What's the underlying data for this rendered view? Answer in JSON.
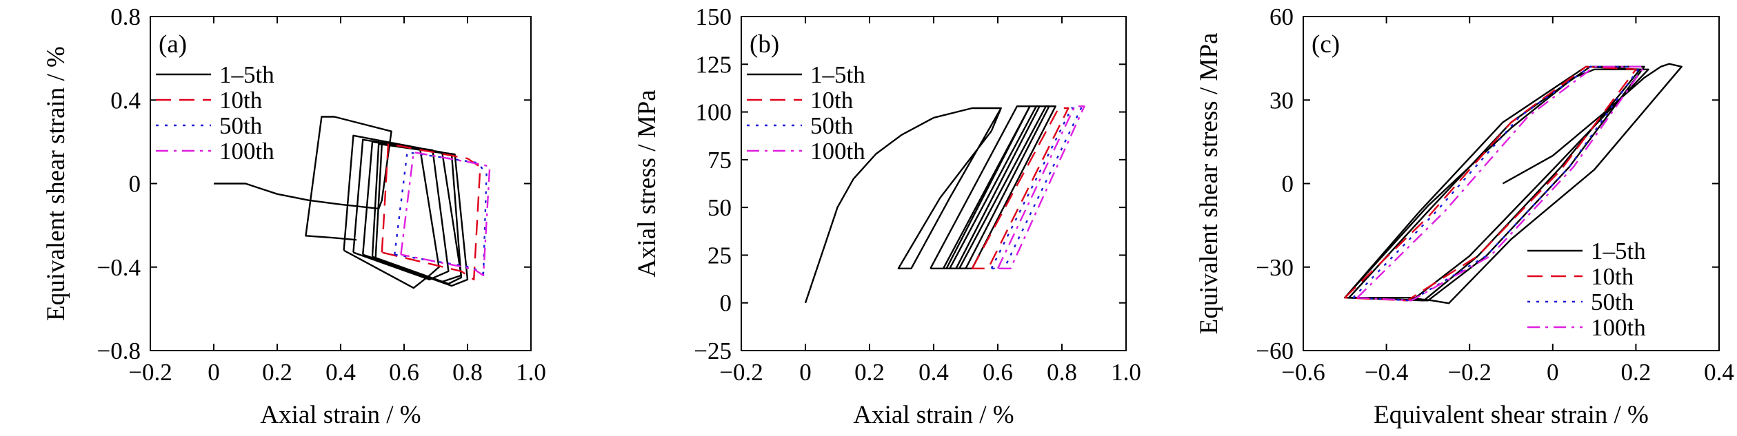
{
  "legend_labels": [
    "1–5th",
    "10th",
    "50th",
    "100th"
  ],
  "colors": {
    "1-5th": "#000000",
    "10th": "#e0001b",
    "50th": "#1a1adb",
    "100th": "#e01ee0"
  },
  "chart_data": [
    {
      "type": "line",
      "panel_label": "(a)",
      "xlabel": "Axial strain / %",
      "ylabel": "Equivalent shear strain / %",
      "xlim": [
        -0.2,
        1.0
      ],
      "ylim": [
        -0.8,
        0.8
      ],
      "xticks": [
        -0.2,
        0.0,
        0.2,
        0.4,
        0.6,
        0.8,
        1.0
      ],
      "xtick_labels": [
        "−0.2",
        "0",
        "0.2",
        "0.4",
        "0.6",
        "0.8",
        "1.0"
      ],
      "yticks": [
        -0.8,
        -0.4,
        0,
        0.4,
        0.8
      ],
      "ytick_labels": [
        "−0.8",
        "−0.4",
        "0",
        "0.4",
        "0.8"
      ],
      "legend_position": "top-left",
      "series": [
        {
          "name": "1–5th",
          "style": "solid",
          "color": "#000000",
          "segments": [
            [
              [
                0,
                0
              ],
              [
                0.1,
                0
              ],
              [
                0.2,
                -0.05
              ],
              [
                0.3,
                -0.08
              ],
              [
                0.4,
                -0.1
              ],
              [
                0.52,
                -0.12
              ],
              [
                0.53,
                -0.08
              ],
              [
                0.56,
                0.25
              ],
              [
                0.38,
                0.32
              ],
              [
                0.34,
                0.32
              ],
              [
                0.29,
                -0.25
              ],
              [
                0.38,
                -0.26
              ],
              [
                0.45,
                -0.27
              ]
            ],
            [
              [
                0.41,
                -0.32
              ],
              [
                0.44,
                0.23
              ],
              [
                0.65,
                0.17
              ],
              [
                0.71,
                -0.4
              ],
              [
                0.68,
                -0.44
              ],
              [
                0.63,
                -0.5
              ],
              [
                0.41,
                -0.32
              ]
            ],
            [
              [
                0.44,
                -0.33
              ],
              [
                0.47,
                0.21
              ],
              [
                0.69,
                0.16
              ],
              [
                0.74,
                -0.42
              ],
              [
                0.68,
                -0.46
              ],
              [
                0.44,
                -0.33
              ]
            ],
            [
              [
                0.47,
                -0.34
              ],
              [
                0.5,
                0.2
              ],
              [
                0.72,
                0.15
              ],
              [
                0.78,
                -0.44
              ],
              [
                0.72,
                -0.47
              ],
              [
                0.47,
                -0.34
              ]
            ],
            [
              [
                0.5,
                -0.35
              ],
              [
                0.52,
                0.19
              ],
              [
                0.75,
                0.14
              ],
              [
                0.78,
                -0.45
              ],
              [
                0.74,
                -0.48
              ],
              [
                0.5,
                -0.35
              ]
            ],
            [
              [
                0.51,
                -0.36
              ],
              [
                0.53,
                0.19
              ],
              [
                0.76,
                0.14
              ],
              [
                0.8,
                -0.46
              ],
              [
                0.75,
                -0.49
              ],
              [
                0.51,
                -0.36
              ]
            ]
          ]
        },
        {
          "name": "10th",
          "style": "dashed",
          "color": "#e0001b",
          "segments": [
            [
              [
                0.53,
                -0.33
              ],
              [
                0.55,
                0.19
              ],
              [
                0.8,
                0.12
              ],
              [
                0.84,
                0.08
              ],
              [
                0.82,
                -0.46
              ],
              [
                0.78,
                -0.42
              ],
              [
                0.53,
                -0.33
              ]
            ]
          ]
        },
        {
          "name": "50th",
          "style": "dotted",
          "color": "#1a1adb",
          "segments": [
            [
              [
                0.57,
                -0.34
              ],
              [
                0.61,
                0.15
              ],
              [
                0.83,
                0.1
              ],
              [
                0.86,
                0.05
              ],
              [
                0.85,
                -0.43
              ],
              [
                0.81,
                -0.4
              ],
              [
                0.57,
                -0.34
              ]
            ]
          ]
        },
        {
          "name": "100th",
          "style": "dashdot",
          "color": "#e01ee0",
          "segments": [
            [
              [
                0.59,
                -0.34
              ],
              [
                0.63,
                0.15
              ],
              [
                0.85,
                0.09
              ],
              [
                0.87,
                0.08
              ],
              [
                0.85,
                -0.44
              ],
              [
                0.82,
                -0.41
              ],
              [
                0.59,
                -0.34
              ]
            ]
          ]
        }
      ]
    },
    {
      "type": "line",
      "panel_label": "(b)",
      "xlabel": "Axial strain / %",
      "ylabel": "Axial stress / MPa",
      "xlim": [
        -0.2,
        1.0
      ],
      "ylim": [
        -25,
        150
      ],
      "xticks": [
        -0.2,
        0.0,
        0.2,
        0.4,
        0.6,
        0.8,
        1.0
      ],
      "xtick_labels": [
        "−0.2",
        "0",
        "0.2",
        "0.4",
        "0.6",
        "0.8",
        "1.0"
      ],
      "yticks": [
        -25,
        0,
        25,
        50,
        75,
        100,
        125,
        150
      ],
      "ytick_labels": [
        "−25",
        "0",
        "25",
        "50",
        "75",
        "100",
        "125",
        "150"
      ],
      "legend_position": "top-left",
      "series": [
        {
          "name": "1–5th",
          "style": "solid",
          "color": "#000000",
          "segments": [
            [
              [
                0,
                0
              ],
              [
                0.05,
                25
              ],
              [
                0.1,
                50
              ],
              [
                0.15,
                65
              ],
              [
                0.22,
                78
              ],
              [
                0.3,
                88
              ],
              [
                0.4,
                97
              ],
              [
                0.52,
                102
              ],
              [
                0.61,
                102
              ],
              [
                0.45,
                55
              ],
              [
                0.33,
                18
              ],
              [
                0.29,
                18
              ],
              [
                0.42,
                55
              ],
              [
                0.58,
                90
              ],
              [
                0.61,
                102
              ]
            ],
            [
              [
                0.39,
                18
              ],
              [
                0.66,
                103
              ],
              [
                0.7,
                103
              ],
              [
                0.44,
                18
              ],
              [
                0.39,
                18
              ]
            ],
            [
              [
                0.43,
                18
              ],
              [
                0.7,
                103
              ],
              [
                0.73,
                103
              ],
              [
                0.47,
                18
              ],
              [
                0.43,
                18
              ]
            ],
            [
              [
                0.45,
                18
              ],
              [
                0.72,
                103
              ],
              [
                0.76,
                103
              ],
              [
                0.5,
                18
              ],
              [
                0.45,
                18
              ]
            ],
            [
              [
                0.48,
                18
              ],
              [
                0.75,
                103
              ],
              [
                0.78,
                103
              ],
              [
                0.52,
                18
              ],
              [
                0.48,
                18
              ]
            ]
          ]
        },
        {
          "name": "10th",
          "style": "dashed",
          "color": "#e0001b",
          "segments": [
            [
              [
                0.52,
                18
              ],
              [
                0.79,
                102
              ],
              [
                0.82,
                102
              ],
              [
                0.57,
                18
              ],
              [
                0.52,
                18
              ]
            ]
          ]
        },
        {
          "name": "50th",
          "style": "dotted",
          "color": "#1a1adb",
          "segments": [
            [
              [
                0.58,
                18
              ],
              [
                0.83,
                102
              ],
              [
                0.86,
                102
              ],
              [
                0.62,
                18
              ],
              [
                0.58,
                18
              ]
            ]
          ]
        },
        {
          "name": "100th",
          "style": "dashdot",
          "color": "#e01ee0",
          "segments": [
            [
              [
                0.6,
                18
              ],
              [
                0.84,
                103
              ],
              [
                0.87,
                103
              ],
              [
                0.64,
                18
              ],
              [
                0.6,
                18
              ]
            ]
          ]
        }
      ]
    },
    {
      "type": "line",
      "panel_label": "(c)",
      "xlabel": "Equivalent shear strain / %",
      "ylabel": "Equivalent shear stress / MPa",
      "xlim": [
        -0.6,
        0.4
      ],
      "ylim": [
        -60,
        60
      ],
      "xticks": [
        -0.6,
        -0.4,
        -0.2,
        0.0,
        0.2,
        0.4
      ],
      "xtick_labels": [
        "−0.6",
        "−0.4",
        "−0.2",
        "0",
        "0.2",
        "0.4"
      ],
      "yticks": [
        -60,
        -30,
        0,
        30,
        60
      ],
      "ytick_labels": [
        "−60",
        "−30",
        "0",
        "30",
        "60"
      ],
      "legend_position": "bottom-right",
      "series": [
        {
          "name": "1–5th",
          "style": "solid",
          "color": "#000000",
          "segments": [
            [
              [
                -0.12,
                0
              ],
              [
                0.0,
                10
              ],
              [
                0.12,
                25
              ],
              [
                0.22,
                38
              ],
              [
                0.26,
                42
              ],
              [
                0.28,
                43
              ],
              [
                0.31,
                42
              ],
              [
                0.1,
                5
              ],
              [
                -0.1,
                -20
              ],
              [
                -0.25,
                -43
              ],
              [
                -0.29,
                -42
              ],
              [
                -0.35,
                -41
              ],
              [
                -0.45,
                -41
              ],
              [
                -0.5,
                -41
              ],
              [
                -0.3,
                -8
              ],
              [
                -0.1,
                20
              ],
              [
                0.05,
                38
              ],
              [
                0.1,
                41
              ],
              [
                0.23,
                41
              ],
              [
                0.0,
                5
              ],
              [
                -0.2,
                -26
              ],
              [
                -0.33,
                -41
              ],
              [
                -0.5,
                -41
              ]
            ],
            [
              [
                -0.5,
                -41
              ],
              [
                -0.32,
                -10
              ],
              [
                -0.12,
                22
              ],
              [
                0.08,
                42
              ],
              [
                0.21,
                41
              ],
              [
                0.02,
                6
              ],
              [
                -0.18,
                -26
              ],
              [
                -0.31,
                -42
              ],
              [
                -0.5,
                -41
              ]
            ],
            [
              [
                -0.49,
                -41
              ],
              [
                -0.3,
                -10
              ],
              [
                -0.1,
                22
              ],
              [
                0.09,
                42
              ],
              [
                0.22,
                42
              ],
              [
                0.04,
                6
              ],
              [
                -0.16,
                -26
              ],
              [
                -0.3,
                -42
              ],
              [
                -0.49,
                -41
              ]
            ]
          ]
        },
        {
          "name": "10th",
          "style": "dashed",
          "color": "#e0001b",
          "segments": [
            [
              [
                -0.5,
                -41
              ],
              [
                -0.3,
                -12
              ],
              [
                -0.1,
                22
              ],
              [
                0.08,
                42
              ],
              [
                0.2,
                41
              ],
              [
                0.02,
                5
              ],
              [
                -0.18,
                -26
              ],
              [
                -0.35,
                -42
              ],
              [
                -0.5,
                -41
              ]
            ]
          ]
        },
        {
          "name": "50th",
          "style": "dotted",
          "color": "#1a1adb",
          "segments": [
            [
              [
                -0.48,
                -41
              ],
              [
                -0.28,
                -10
              ],
              [
                -0.08,
                24
              ],
              [
                0.09,
                42
              ],
              [
                0.21,
                42
              ],
              [
                0.04,
                6
              ],
              [
                -0.16,
                -26
              ],
              [
                -0.34,
                -42
              ],
              [
                -0.48,
                -41
              ]
            ]
          ]
        },
        {
          "name": "100th",
          "style": "dashdot",
          "color": "#e01ee0",
          "segments": [
            [
              [
                -0.47,
                -41
              ],
              [
                -0.26,
                -10
              ],
              [
                -0.06,
                24
              ],
              [
                0.1,
                42
              ],
              [
                0.22,
                42
              ],
              [
                0.05,
                6
              ],
              [
                -0.15,
                -26
              ],
              [
                -0.34,
                -42
              ],
              [
                -0.47,
                -41
              ]
            ]
          ]
        }
      ]
    }
  ]
}
